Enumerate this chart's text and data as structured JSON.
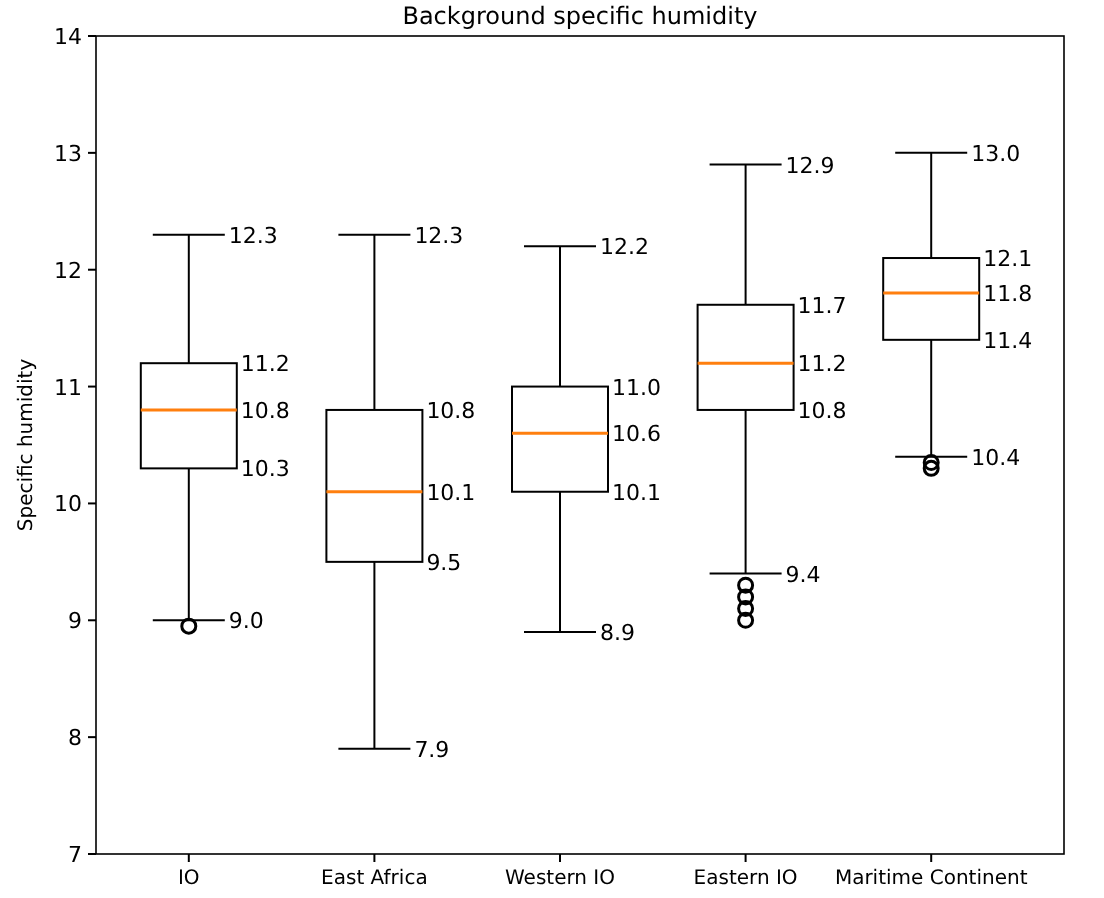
{
  "chart_data": {
    "type": "box",
    "title": "Background specific humidity",
    "ylabel": "Specific humidity",
    "categories": [
      "IO",
      "East Africa",
      "Western IO",
      "Eastern IO",
      "Maritime Continent"
    ],
    "boxes": [
      {
        "low": 9.0,
        "q1": 10.3,
        "median": 10.8,
        "q3": 11.2,
        "high": 12.3,
        "outliers": [
          8.95
        ]
      },
      {
        "low": 7.9,
        "q1": 9.5,
        "median": 10.1,
        "q3": 10.8,
        "high": 12.3
      },
      {
        "low": 8.9,
        "q1": 10.1,
        "median": 10.6,
        "q3": 11.0,
        "high": 12.2
      },
      {
        "low": 9.4,
        "q1": 10.8,
        "median": 11.2,
        "q3": 11.7,
        "high": 12.9,
        "outliers": [
          9.0,
          9.1,
          9.2,
          9.3
        ]
      },
      {
        "low": 10.4,
        "q1": 11.4,
        "median": 11.8,
        "q3": 12.1,
        "high": 13.0,
        "outliers": [
          10.3,
          10.35
        ]
      }
    ],
    "color": "#000000",
    "annotations": [
      {
        "text": "12.3",
        "x": "IO",
        "y": 12.3
      },
      {
        "text": "11.2",
        "x": "IO",
        "y": 11.2
      },
      {
        "text": "10.8",
        "x": "IO",
        "y": 10.8
      },
      {
        "text": "10.3",
        "x": "IO",
        "y": 10.3
      },
      {
        "text": "9.0",
        "x": "IO",
        "y": 9.0
      },
      {
        "text": "12.3",
        "x": "East Africa",
        "y": 12.3
      },
      {
        "text": "10.8",
        "x": "East Africa",
        "y": 10.8
      },
      {
        "text": "10.1",
        "x": "East Africa",
        "y": 10.1
      },
      {
        "text": "9.5",
        "x": "East Africa",
        "y": 9.5
      },
      {
        "text": "7.9",
        "x": "East Africa",
        "y": 7.9
      },
      {
        "text": "12.2",
        "x": "Western IO",
        "y": 12.2
      },
      {
        "text": "11.0",
        "x": "Western IO",
        "y": 11.0
      },
      {
        "text": "10.6",
        "x": "Western IO",
        "y": 10.6
      },
      {
        "text": "10.1",
        "x": "Western IO",
        "y": 10.1
      },
      {
        "text": "8.9",
        "x": "Western IO",
        "y": 8.9
      },
      {
        "text": "12.9",
        "x": "Eastern IO",
        "y": 12.9
      },
      {
        "text": "11.7",
        "x": "Eastern IO",
        "y": 11.7
      },
      {
        "text": "11.2",
        "x": "Eastern IO",
        "y": 11.2
      },
      {
        "text": "10.8",
        "x": "Eastern IO",
        "y": 10.8
      },
      {
        "text": "9.4",
        "x": "Eastern IO",
        "y": 9.4
      },
      {
        "text": "13.0",
        "x": "Maritime Continent",
        "y": 13.0
      },
      {
        "text": "12.1",
        "x": "Maritime Continent",
        "y": 12.1
      },
      {
        "text": "11.8",
        "x": "Maritime Continent",
        "y": 11.8
      },
      {
        "text": "11.4",
        "x": "Maritime Continent",
        "y": 11.4
      },
      {
        "text": "10.4",
        "x": "Maritime Continent",
        "y": 10.4
      }
    ],
    "ylim": [
      7,
      14
    ],
    "yticks": [
      7,
      8,
      9,
      10,
      11,
      12,
      13,
      14
    ],
    "grid": false
  }
}
